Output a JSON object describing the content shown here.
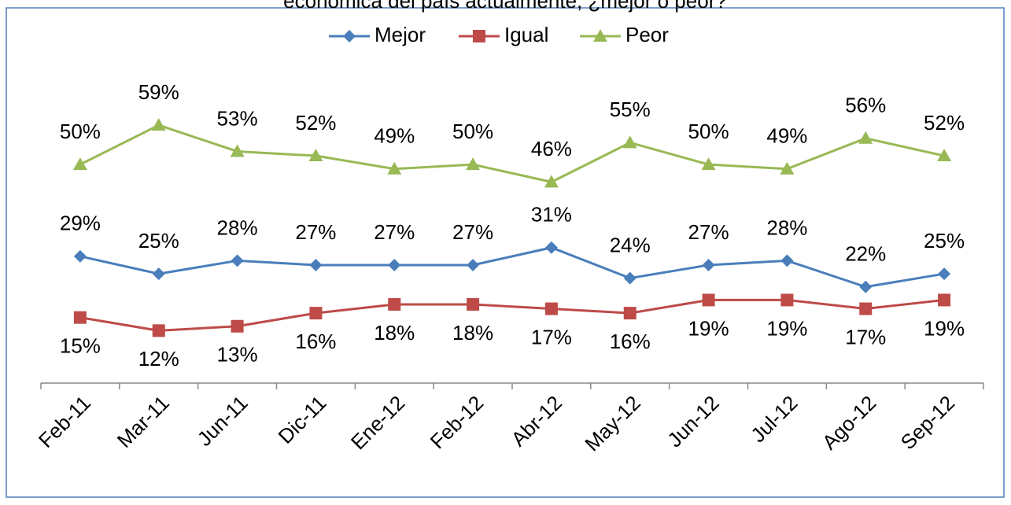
{
  "chart_data": {
    "type": "line",
    "title": "económica del país actualmente, ¿mejor o peor?",
    "categories": [
      "Feb-11",
      "Mar-11",
      "Jun-11",
      "Dic-11",
      "Ene-12",
      "Feb-12",
      "Abr-12",
      "May-12",
      "Jun-12",
      "Jul-12",
      "Ago-12",
      "Sep-12"
    ],
    "series": [
      {
        "name": "Mejor",
        "color": "#4a7ebb",
        "marker": "diamond",
        "values": [
          29,
          25,
          28,
          27,
          27,
          27,
          31,
          24,
          27,
          28,
          22,
          25
        ],
        "value_labels": [
          "29%",
          "25%",
          "28%",
          "27%",
          "27%",
          "27%",
          "31%",
          "24%",
          "27%",
          "28%",
          "22%",
          "25%"
        ]
      },
      {
        "name": "Igual",
        "color": "#be4b48",
        "marker": "square",
        "values": [
          15,
          12,
          13,
          16,
          18,
          18,
          17,
          16,
          19,
          19,
          17,
          19
        ],
        "value_labels": [
          "15%",
          "12%",
          "13%",
          "16%",
          "18%",
          "18%",
          "17%",
          "16%",
          "19%",
          "19%",
          "17%",
          "19%"
        ]
      },
      {
        "name": "Peor",
        "color": "#98b954",
        "marker": "triangle",
        "values": [
          50,
          59,
          53,
          52,
          49,
          50,
          46,
          55,
          50,
          49,
          56,
          52
        ],
        "value_labels": [
          "50%",
          "59%",
          "53%",
          "52%",
          "49%",
          "50%",
          "46%",
          "55%",
          "50%",
          "49%",
          "56%",
          "52%"
        ]
      }
    ],
    "ylim": [
      0,
      70
    ],
    "legend": "top"
  }
}
